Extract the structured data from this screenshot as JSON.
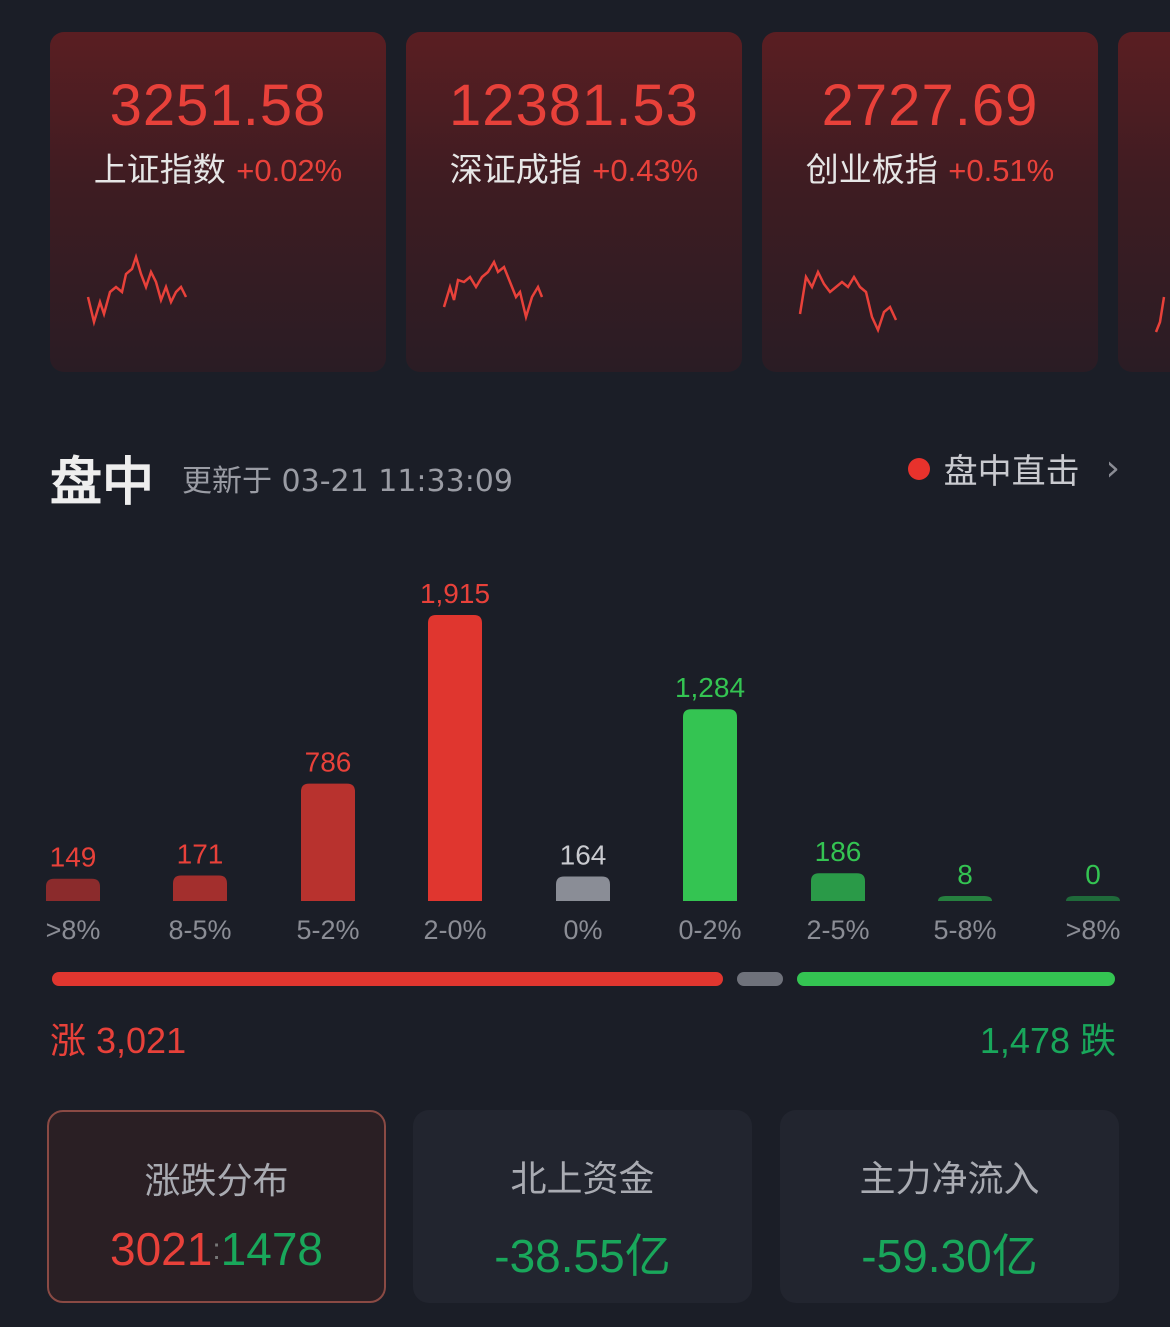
{
  "indices": [
    {
      "value": "3251.58",
      "name": "上证指数",
      "change": "+0.02%"
    },
    {
      "value": "12381.53",
      "name": "深证成指",
      "change": "+0.43%"
    },
    {
      "value": "2727.69",
      "name": "创业板指",
      "change": "+0.51%"
    }
  ],
  "section": {
    "title": "盘中",
    "updated": "更新于 03-21 11:33:09",
    "live_label": "盘中直击",
    "chevron": "›"
  },
  "chart_data": {
    "type": "bar",
    "categories": [
      ">8%",
      "8-5%",
      "5-2%",
      "2-0%",
      "0%",
      "0-2%",
      "2-5%",
      "5-8%",
      ">8%"
    ],
    "values": [
      149,
      171,
      786,
      1915,
      164,
      1284,
      186,
      8,
      0
    ],
    "value_labels": [
      "149",
      "171",
      "786",
      "1,915",
      "164",
      "1,284",
      "186",
      "8",
      "0"
    ],
    "colors": [
      "#8b2b2c",
      "#a32f2d",
      "#b8322e",
      "#e0362f",
      "#8a8d96",
      "#34c452",
      "#2a9a48",
      "#26803f",
      "#1f6a3a"
    ]
  },
  "summary": {
    "up_label": "涨 3,021",
    "down_label": "1,478 跌",
    "up": 3021,
    "flat": 164,
    "down": 1478
  },
  "cards": [
    {
      "title": "涨跌分布",
      "up": "3021",
      "sep": ":",
      "down": "1478"
    },
    {
      "title": "北上资金",
      "value": "-38.55亿"
    },
    {
      "title": "主力净流入",
      "value": "-59.30亿"
    }
  ],
  "colors": {
    "up": "#e8413a",
    "down": "#19a75b",
    "flat": "#6f727b"
  }
}
